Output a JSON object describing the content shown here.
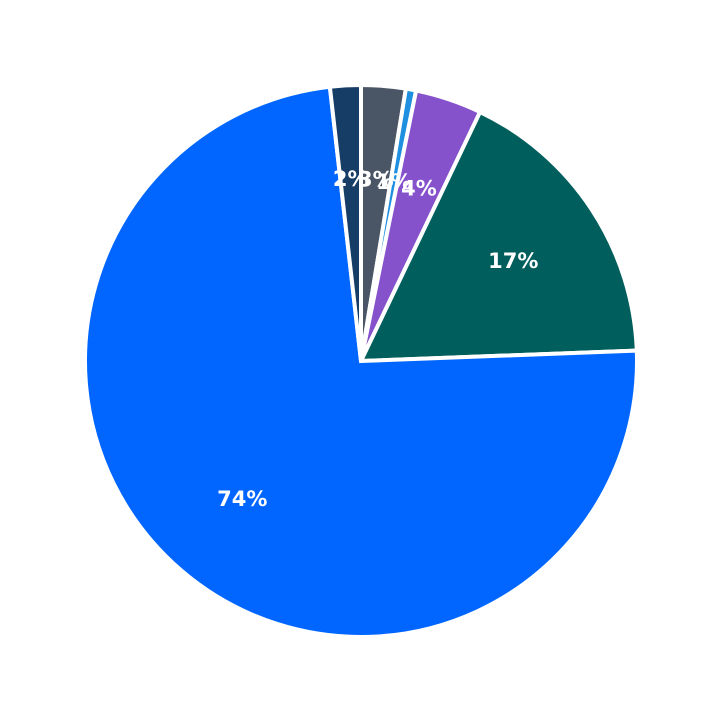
{
  "chart_data": {
    "type": "pie",
    "title": "",
    "start_angle_deg": 90,
    "direction": "clockwise",
    "slices": [
      {
        "value": 2.6,
        "label": "3%",
        "color": "#4a5565"
      },
      {
        "value": 0.6,
        "label": "1%",
        "color": "#1f8fe0"
      },
      {
        "value": 3.9,
        "label": "4%",
        "color": "#8552cc"
      },
      {
        "value": 17.3,
        "label": "17%",
        "color": "#005e5c"
      },
      {
        "value": 73.8,
        "label": "74%",
        "color": "#0066ff"
      },
      {
        "value": 1.8,
        "label": "2%",
        "color": "#163d66"
      }
    ]
  }
}
